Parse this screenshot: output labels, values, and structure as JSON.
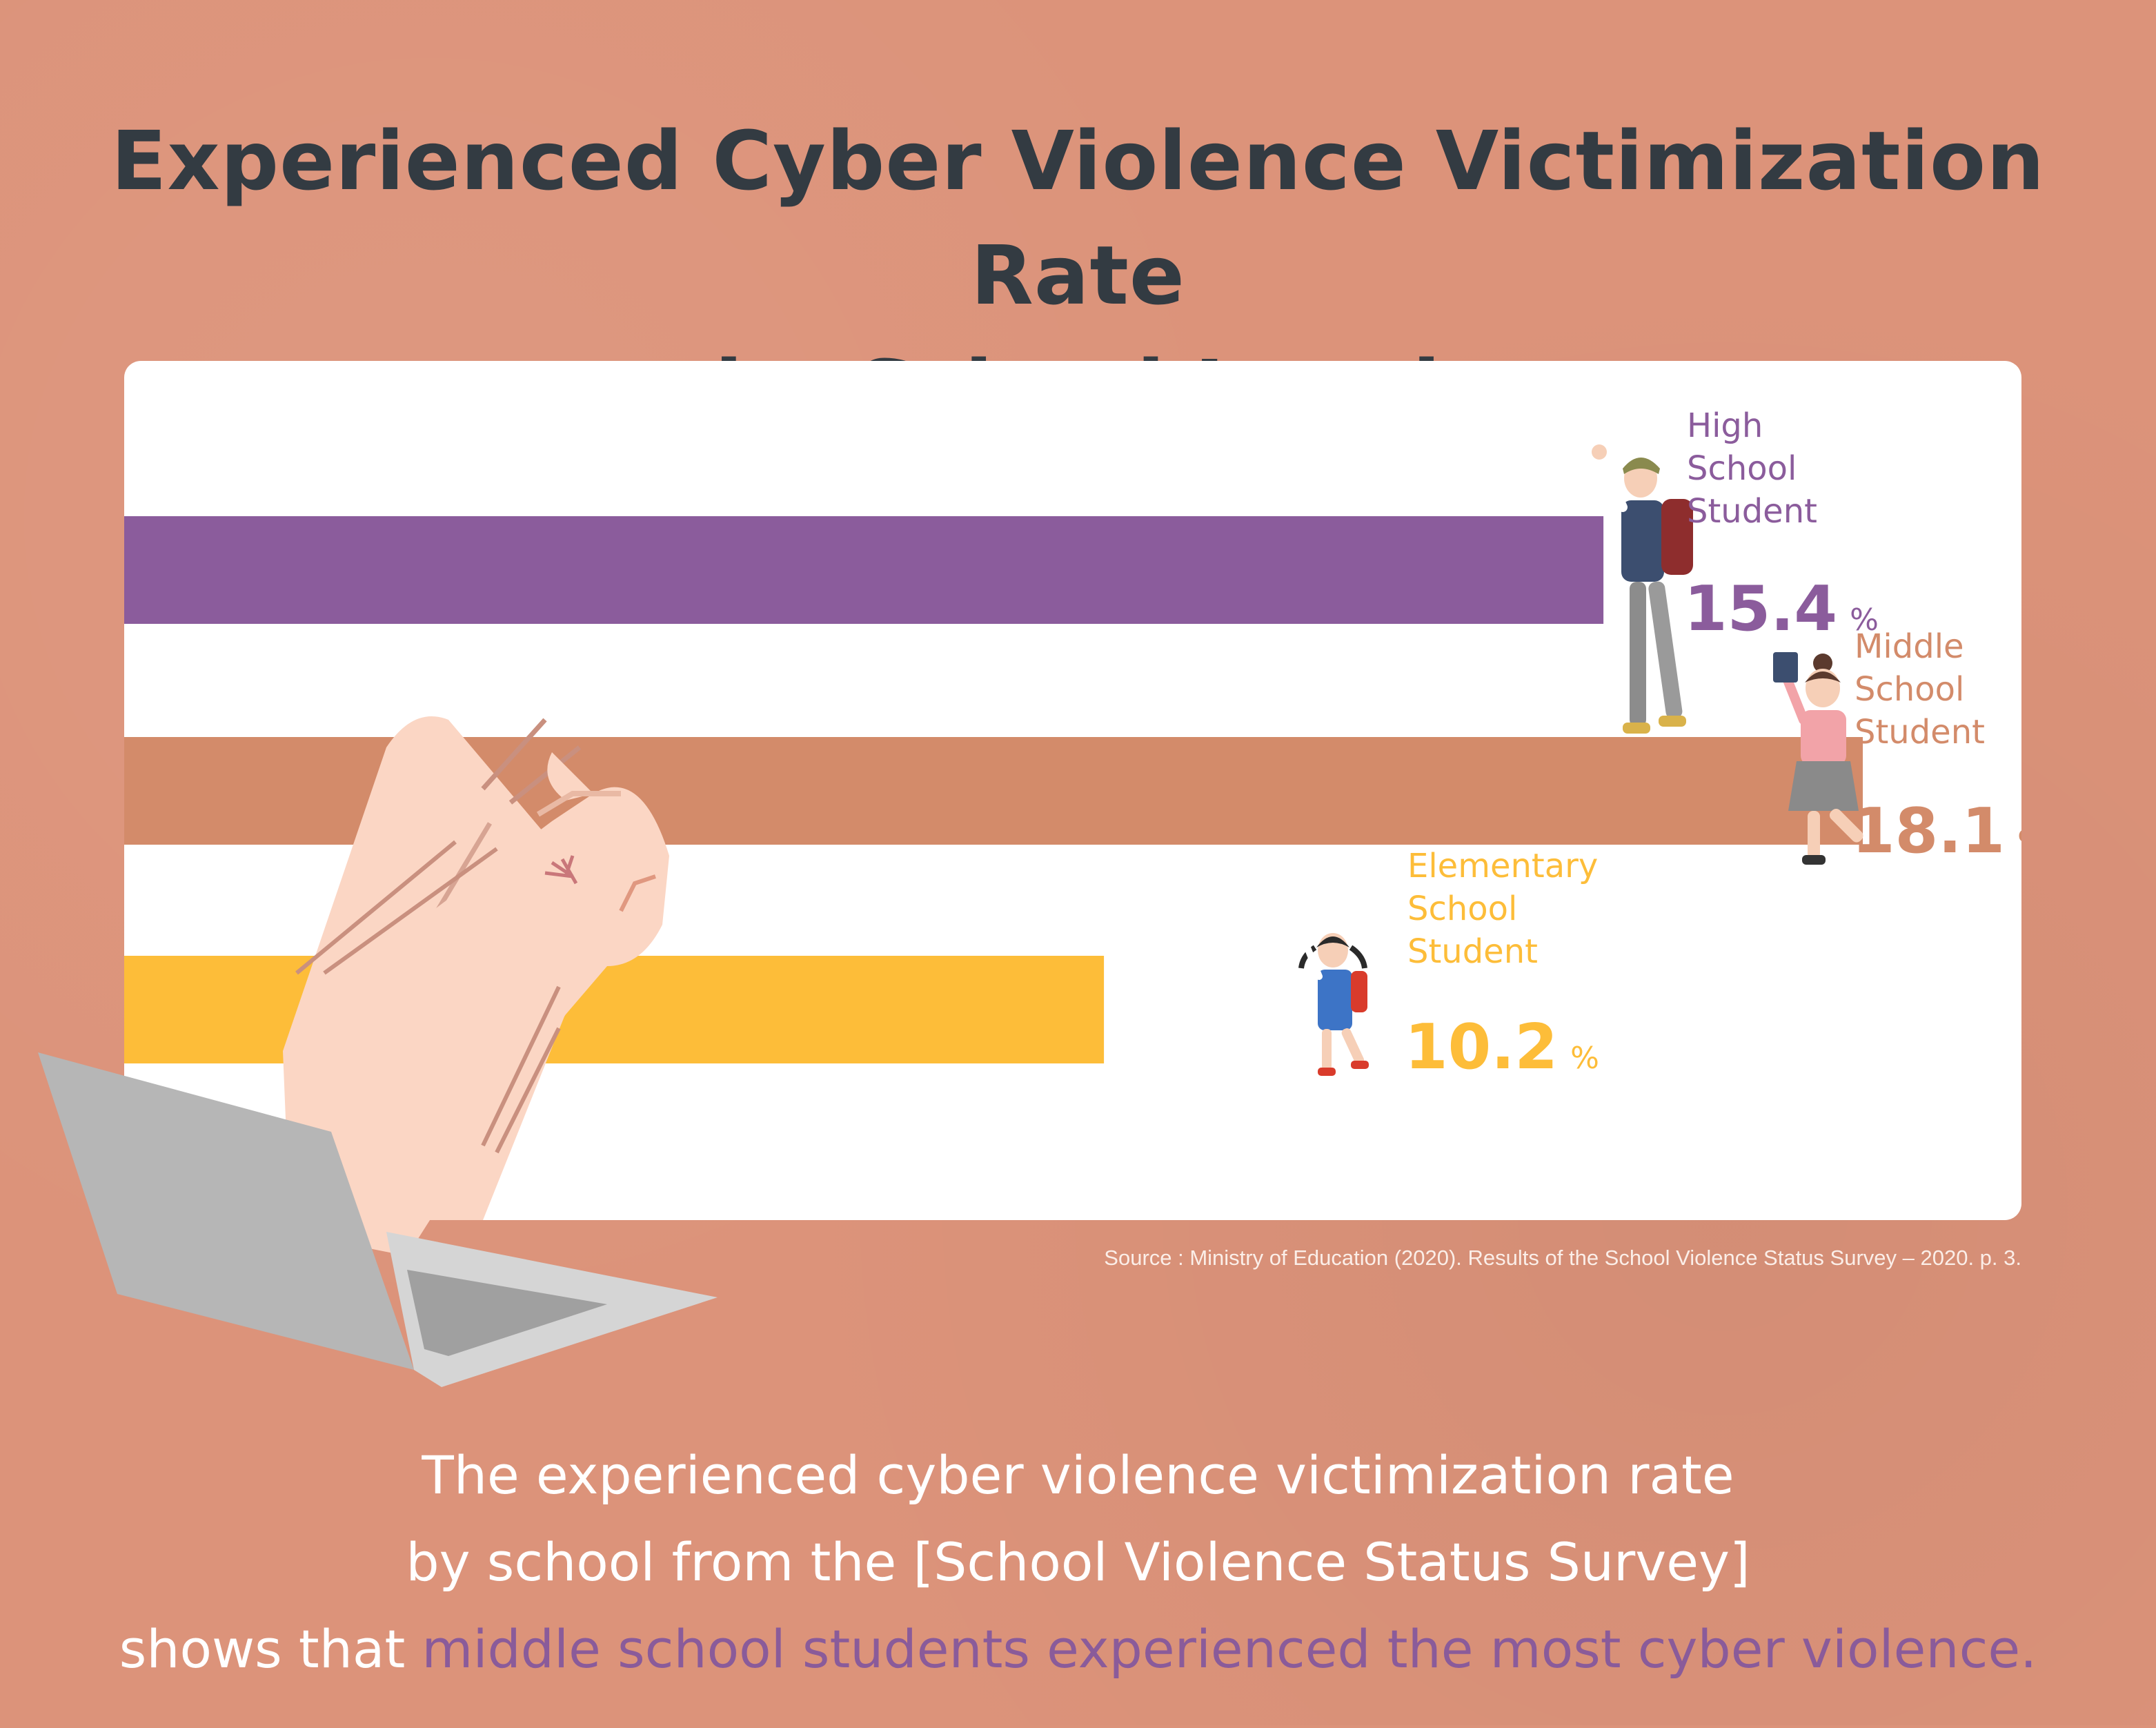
{
  "title": {
    "line1": "Experienced Cyber Violence Victimization Rate",
    "line2": "by School Level"
  },
  "chart_data": {
    "type": "bar",
    "orientation": "horizontal",
    "title": "Experienced Cyber Violence Victimization Rate by School Level",
    "unit": "%",
    "xlim": [
      0,
      20
    ],
    "grid": false,
    "series": [
      {
        "label_lines": [
          "High",
          "School",
          "Student"
        ],
        "value": 15.4,
        "value_text": "15.4",
        "color": "#8b5c9c"
      },
      {
        "label_lines": [
          "Middle",
          "School",
          "Student"
        ],
        "value": 18.1,
        "value_text": "18.1",
        "color": "#d38b6a"
      },
      {
        "label_lines": [
          "Elementary",
          "School",
          "Student"
        ],
        "value": 10.2,
        "value_text": "10.2",
        "color": "#fdbd39"
      }
    ]
  },
  "source": "Source : Ministry of Education (2020). Results of the School Violence Status Survey – 2020. p. 3.",
  "summary": {
    "line1": "The experienced cyber violence victimization rate",
    "line2": "by school from the [School Violence Status Survey]",
    "line3_prefix": "shows that ",
    "line3_highlight": "middle school students experienced the most cyber violence."
  }
}
